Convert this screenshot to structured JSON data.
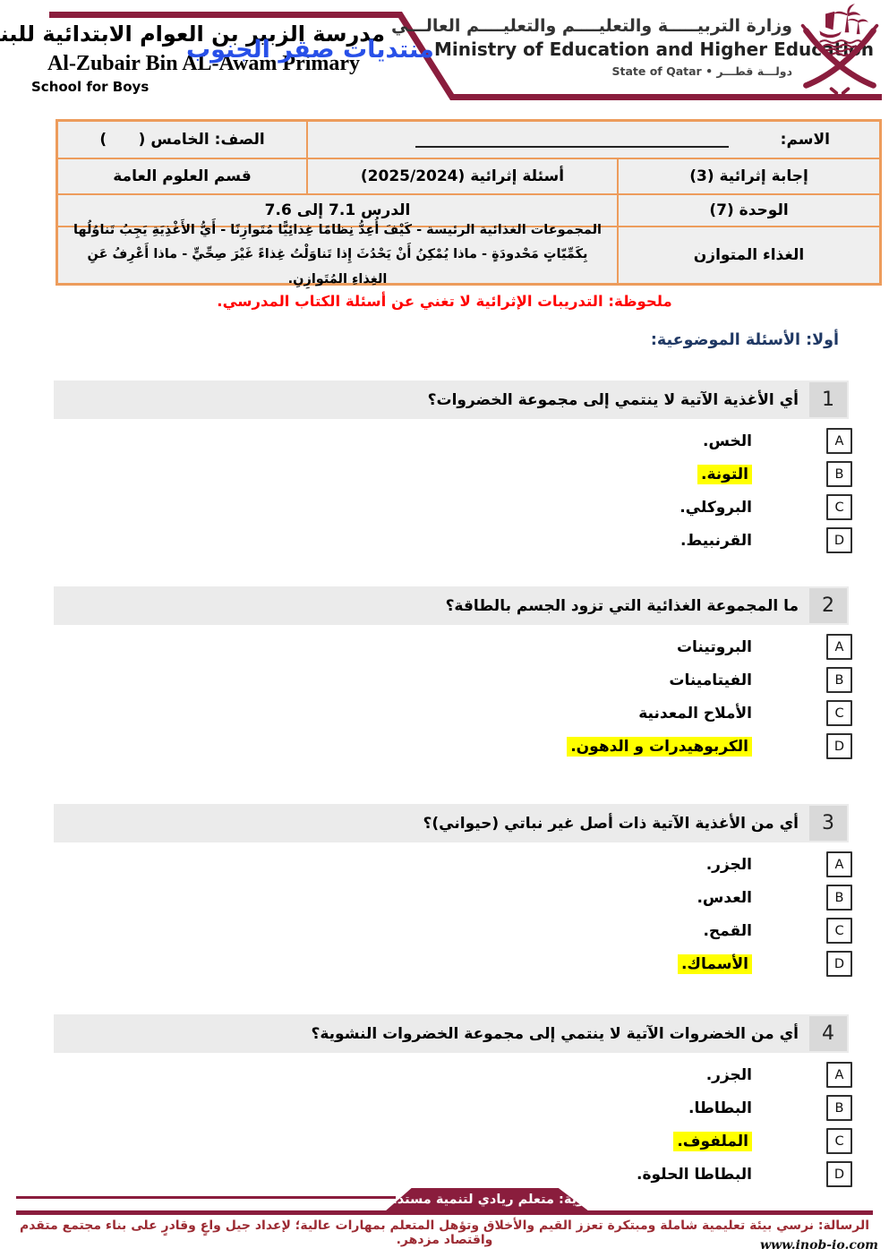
{
  "header": {
    "school_name_ar": "مدرسة الزبير بن العوام الابتدائية للبنين",
    "watermark_text": "منتديات صقر الجنوب",
    "school_name_en": "Al-Zubair Bin AL-Awam Primary",
    "school_name_en_line2": "School for Boys",
    "ministry_name_ar": "وزارة التربيـــــة والتعليــــم والتعليــــم العالـــي",
    "ministry_name_en": "Ministry of Education and Higher Education",
    "state_line": "دولـــة قطـــر • State of Qatar",
    "emblem_icon": "qatar-emblem"
  },
  "info_table": {
    "name_label": "الاسم:",
    "name_value": "",
    "class_label": "الصف: الخامس (      )",
    "answer_type": "إجابة إثرائية (3)",
    "question_type": "أسئلة إثرائية (2025/2024)",
    "department": "قسم العلوم العامة",
    "unit": "الوحدة (7)",
    "lesson": "الدرس 7.1 إلى 7.6",
    "topic": "الغذاء المتوازن",
    "topic_description": "المجموعات الغذائية الرئيسة - كَيْفَ أُعِدُّ نِظامًا غِذائِيًّا مُتَوازِنًا - أَيُّ الأَغْذِيَةِ يَجِبُ تَناوُلُها بِكَمِّيّاتٍ مَحْدودَةٍ - ماذا يُمْكِنُ أَنْ يَحْدُثَ إِذا تَناوَلْتُ غِذاءً غَيْرَ صِحِّيٍّ - ماذا أَعْرِفُ عَنِ الغِذاءِ المُتَوازِنِ."
  },
  "note": "ملحوظة: التدريبات الإثرائية لا تغني عن أسئلة الكتاب المدرسي.",
  "section_title": "أولا: الأسئلة الموضوعية:",
  "questions": [
    {
      "number": "1",
      "text": "أي الأغذية الآتية لا ينتمي إلى مجموعة الخضروات؟",
      "options": [
        {
          "letter": "A",
          "text": "الخس.",
          "highlight": false
        },
        {
          "letter": "B",
          "text": "التونة.",
          "highlight": true
        },
        {
          "letter": "C",
          "text": "البروكلي.",
          "highlight": false
        },
        {
          "letter": "D",
          "text": "القرنبيط.",
          "highlight": false
        }
      ]
    },
    {
      "number": "2",
      "text": "ما المجموعة الغذائية التي تزود الجسم بالطاقة؟",
      "options": [
        {
          "letter": "A",
          "text": "البروتينات",
          "highlight": false
        },
        {
          "letter": "B",
          "text": "الفيتامينات",
          "highlight": false
        },
        {
          "letter": "C",
          "text": "الأملاح المعدنية",
          "highlight": false
        },
        {
          "letter": "D",
          "text": "الكربوهيدرات و الدهون.",
          "highlight": true
        }
      ]
    },
    {
      "number": "3",
      "text": "أي من الأغذية الآتية ذات أصل غير نباتي (حيواني)؟",
      "options": [
        {
          "letter": "A",
          "text": "الجزر.",
          "highlight": false
        },
        {
          "letter": "B",
          "text": "العدس.",
          "highlight": false
        },
        {
          "letter": "C",
          "text": "القمح.",
          "highlight": false
        },
        {
          "letter": "D",
          "text": "الأسماك.",
          "highlight": true
        }
      ]
    },
    {
      "number": "4",
      "text": "أي من الخضروات الآتية لا ينتمي إلى مجموعة الخضروات النشوية؟",
      "options": [
        {
          "letter": "A",
          "text": "الجزر.",
          "highlight": false
        },
        {
          "letter": "B",
          "text": "البطاطا.",
          "highlight": false
        },
        {
          "letter": "C",
          "text": "الملفوف.",
          "highlight": true
        },
        {
          "letter": "D",
          "text": "البطاطا الحلوة.",
          "highlight": false
        }
      ]
    }
  ],
  "footer": {
    "vision": "الرؤية: متعلم ريادي لتنمية مستدامة.",
    "mission": "الرسالة: نرسي بيئة تعليمية شاملة ومبتكرة تعزز القيم والأخلاق وتؤهل المتعلم بمهارات عالية؛ لإعداد جيل واعٍ وقادرٍ على بناء مجتمع متقدم واقتصاد مزدهر.",
    "website": "www.inob-io.com"
  },
  "colors": {
    "maroon": "#8a1d3d",
    "table_border": "#ed9c5c",
    "cell_background": "#efefef",
    "question_bar": "#ebebeb",
    "number_box": "#d9d9d9",
    "highlight": "#ffff00",
    "section_heading": "#1f3864",
    "note_red": "#ff0000",
    "watermark_blue": "#2850e8"
  }
}
